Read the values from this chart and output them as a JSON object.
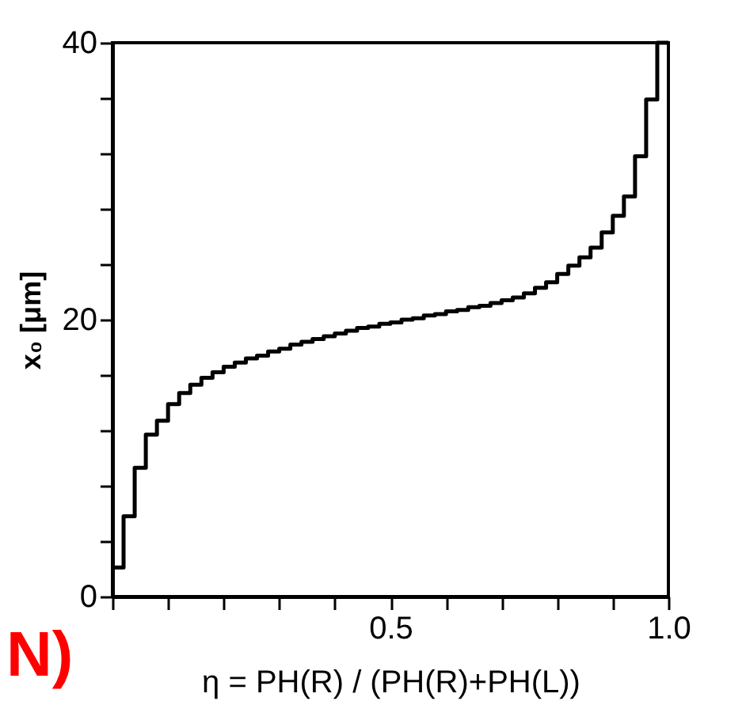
{
  "chart_data": {
    "type": "step",
    "xlabel": "η = PH(R) / (PH(R)+PH(L))",
    "ylabel": "x₀ [μm]",
    "annotations": [
      "N)"
    ],
    "x": [
      0,
      0.02,
      0.04,
      0.06,
      0.08,
      0.1,
      0.12,
      0.14,
      0.16,
      0.18,
      0.2,
      0.22,
      0.24,
      0.26,
      0.28,
      0.3,
      0.32,
      0.34,
      0.36,
      0.38,
      0.4,
      0.42,
      0.44,
      0.46,
      0.48,
      0.5,
      0.52,
      0.54,
      0.56,
      0.58,
      0.6,
      0.62,
      0.64,
      0.66,
      0.68,
      0.7,
      0.72,
      0.74,
      0.76,
      0.78,
      0.8,
      0.82,
      0.84,
      0.86,
      0.88,
      0.9,
      0.92,
      0.94,
      0.96,
      0.98,
      1.0
    ],
    "series": [
      {
        "color": "#000000",
        "values": [
          2.1,
          5.8,
          9.3,
          11.7,
          12.7,
          13.9,
          14.7,
          15.3,
          15.8,
          16.2,
          16.6,
          16.9,
          17.2,
          17.4,
          17.7,
          17.9,
          18.2,
          18.4,
          18.6,
          18.8,
          19.0,
          19.2,
          19.4,
          19.5,
          19.7,
          19.8,
          20.0,
          20.1,
          20.3,
          20.4,
          20.6,
          20.7,
          20.9,
          21.0,
          21.2,
          21.4,
          21.6,
          21.9,
          22.3,
          22.7,
          23.3,
          23.9,
          24.5,
          25.2,
          26.3,
          27.5,
          28.9,
          31.8,
          35.9,
          40,
          40
        ]
      }
    ],
    "xlim": [
      0,
      1.0
    ],
    "xticks": [
      {
        "value": 0,
        "label": null
      },
      {
        "value": 0.1,
        "label": null
      },
      {
        "value": 0.2,
        "label": null
      },
      {
        "value": 0.3,
        "label": null
      },
      {
        "value": 0.4,
        "label": null
      },
      {
        "value": 0.5,
        "label": "0.5"
      },
      {
        "value": 0.6,
        "label": null
      },
      {
        "value": 0.7,
        "label": null
      },
      {
        "value": 0.8,
        "label": null
      },
      {
        "value": 0.9,
        "label": null
      },
      {
        "value": 1.0,
        "label": "1.0"
      }
    ],
    "ylim": [
      0,
      40
    ],
    "yticks": [
      {
        "value": 0,
        "label": "0"
      },
      {
        "value": 4,
        "label": null
      },
      {
        "value": 8,
        "label": null
      },
      {
        "value": 12,
        "label": null
      },
      {
        "value": 16,
        "label": null
      },
      {
        "value": 20,
        "label": "20"
      },
      {
        "value": 24,
        "label": null
      },
      {
        "value": 28,
        "label": null
      },
      {
        "value": 32,
        "label": null
      },
      {
        "value": 36,
        "label": null
      },
      {
        "value": 40,
        "label": "40"
      }
    ],
    "grid": false,
    "marker": "none",
    "line_style": "solid"
  }
}
